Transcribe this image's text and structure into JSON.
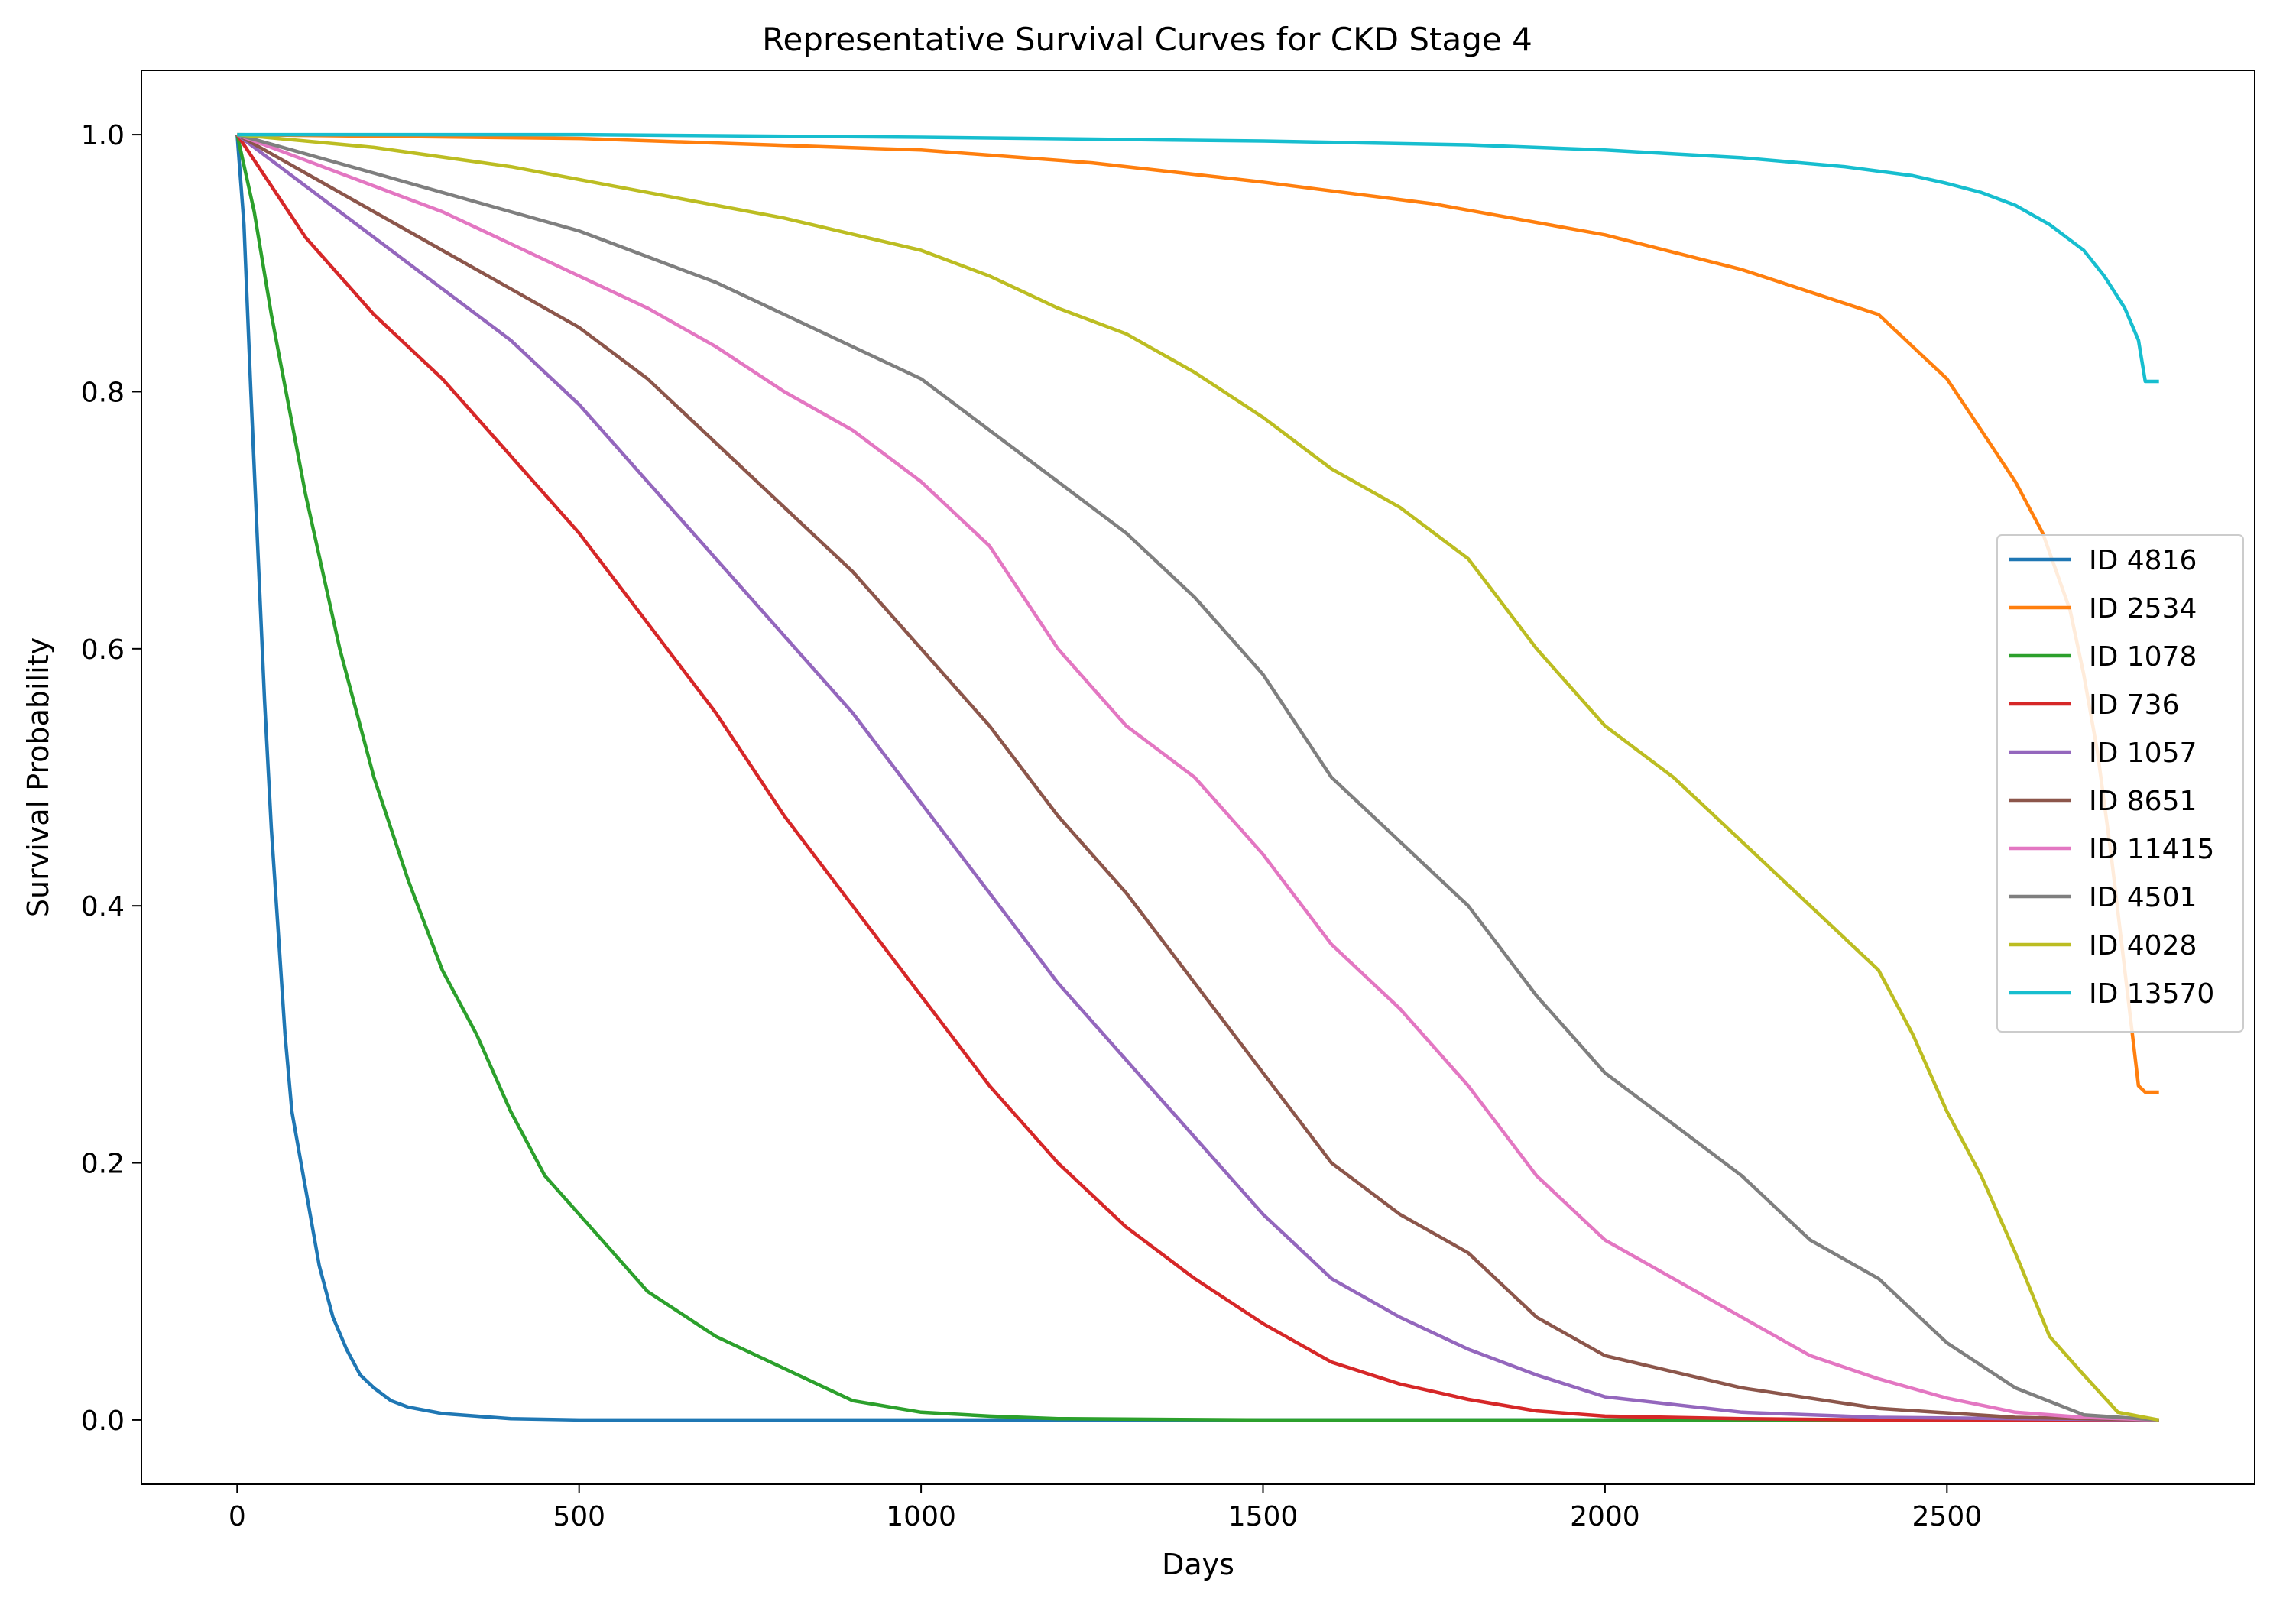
{
  "chart_data": {
    "type": "line",
    "title": "Representative Survival Curves for CKD Stage 4",
    "xlabel": "Days",
    "ylabel": "Survival Probability",
    "xlim": [
      -140,
      2950
    ],
    "ylim": [
      -0.05,
      1.05
    ],
    "xticks": [
      0,
      500,
      1000,
      1500,
      2000,
      2500
    ],
    "yticks": [
      0.0,
      0.2,
      0.4,
      0.6,
      0.8,
      1.0
    ],
    "xtick_labels": [
      "0",
      "500",
      "1000",
      "1500",
      "2000",
      "2500"
    ],
    "ytick_labels": [
      "0.0",
      "0.2",
      "0.4",
      "0.6",
      "0.8",
      "1.0"
    ],
    "grid": false,
    "legend_position": "center-right",
    "series": [
      {
        "name": "ID 4816",
        "color": "#1f77b4",
        "x": [
          0,
          10,
          20,
          30,
          40,
          50,
          60,
          70,
          80,
          100,
          120,
          140,
          160,
          180,
          200,
          225,
          250,
          300,
          350,
          400,
          500,
          1000,
          2000,
          2810
        ],
        "y": [
          1.0,
          0.93,
          0.8,
          0.68,
          0.56,
          0.46,
          0.38,
          0.3,
          0.24,
          0.18,
          0.12,
          0.08,
          0.055,
          0.035,
          0.025,
          0.015,
          0.01,
          0.005,
          0.003,
          0.001,
          0.0,
          0.0,
          0.0,
          0.0
        ]
      },
      {
        "name": "ID 2534",
        "color": "#ff7f0e",
        "x": [
          0,
          500,
          1000,
          1250,
          1500,
          1750,
          2000,
          2200,
          2400,
          2450,
          2500,
          2550,
          2600,
          2620,
          2640,
          2660,
          2680,
          2700,
          2720,
          2740,
          2760,
          2780,
          2790,
          2810
        ],
        "y": [
          1.0,
          0.997,
          0.988,
          0.978,
          0.963,
          0.946,
          0.922,
          0.895,
          0.86,
          0.835,
          0.81,
          0.77,
          0.73,
          0.71,
          0.69,
          0.66,
          0.63,
          0.58,
          0.52,
          0.44,
          0.35,
          0.26,
          0.255,
          0.255
        ]
      },
      {
        "name": "ID 1078",
        "color": "#2ca02c",
        "x": [
          0,
          25,
          50,
          75,
          100,
          150,
          200,
          250,
          300,
          350,
          400,
          450,
          500,
          600,
          700,
          800,
          900,
          1000,
          1100,
          1200,
          1500,
          2000,
          2810
        ],
        "y": [
          1.0,
          0.94,
          0.86,
          0.79,
          0.72,
          0.6,
          0.5,
          0.42,
          0.35,
          0.3,
          0.24,
          0.19,
          0.16,
          0.1,
          0.065,
          0.04,
          0.015,
          0.006,
          0.003,
          0.001,
          0.0,
          0.0,
          0.0
        ]
      },
      {
        "name": "ID 736",
        "color": "#d62728",
        "x": [
          0,
          100,
          200,
          300,
          400,
          500,
          600,
          700,
          800,
          900,
          1000,
          1100,
          1200,
          1300,
          1400,
          1500,
          1600,
          1700,
          1800,
          1900,
          2000,
          2200,
          2400,
          2810
        ],
        "y": [
          1.0,
          0.92,
          0.86,
          0.81,
          0.75,
          0.69,
          0.62,
          0.55,
          0.47,
          0.4,
          0.33,
          0.26,
          0.2,
          0.15,
          0.11,
          0.075,
          0.045,
          0.028,
          0.016,
          0.007,
          0.003,
          0.001,
          0.0,
          0.0
        ]
      },
      {
        "name": "ID 1057",
        "color": "#9467bd",
        "x": [
          0,
          100,
          200,
          300,
          400,
          500,
          600,
          700,
          800,
          900,
          1000,
          1100,
          1200,
          1300,
          1400,
          1500,
          1600,
          1700,
          1800,
          1900,
          2000,
          2200,
          2400,
          2810
        ],
        "y": [
          1.0,
          0.96,
          0.92,
          0.88,
          0.84,
          0.79,
          0.73,
          0.67,
          0.61,
          0.55,
          0.48,
          0.41,
          0.34,
          0.28,
          0.22,
          0.16,
          0.11,
          0.08,
          0.055,
          0.035,
          0.018,
          0.006,
          0.002,
          0.0
        ]
      },
      {
        "name": "ID 8651",
        "color": "#8c564b",
        "x": [
          0,
          100,
          200,
          300,
          400,
          500,
          600,
          700,
          800,
          900,
          1000,
          1100,
          1200,
          1300,
          1400,
          1500,
          1600,
          1700,
          1800,
          1900,
          2000,
          2200,
          2400,
          2600,
          2810
        ],
        "y": [
          1.0,
          0.97,
          0.94,
          0.91,
          0.88,
          0.85,
          0.81,
          0.76,
          0.71,
          0.66,
          0.6,
          0.54,
          0.47,
          0.41,
          0.34,
          0.27,
          0.2,
          0.16,
          0.13,
          0.08,
          0.05,
          0.025,
          0.009,
          0.002,
          0.0
        ]
      },
      {
        "name": "ID 11415",
        "color": "#e377c2",
        "x": [
          0,
          100,
          200,
          300,
          400,
          500,
          600,
          700,
          800,
          900,
          1000,
          1100,
          1200,
          1300,
          1400,
          1500,
          1600,
          1700,
          1800,
          1900,
          2000,
          2100,
          2200,
          2300,
          2400,
          2500,
          2600,
          2700,
          2810
        ],
        "y": [
          1.0,
          0.98,
          0.96,
          0.94,
          0.915,
          0.89,
          0.865,
          0.835,
          0.8,
          0.77,
          0.73,
          0.68,
          0.6,
          0.54,
          0.5,
          0.44,
          0.37,
          0.32,
          0.26,
          0.19,
          0.14,
          0.11,
          0.08,
          0.05,
          0.032,
          0.017,
          0.006,
          0.002,
          0.0
        ]
      },
      {
        "name": "ID 4501",
        "color": "#7f7f7f",
        "x": [
          0,
          100,
          200,
          300,
          400,
          500,
          600,
          700,
          800,
          900,
          1000,
          1100,
          1200,
          1300,
          1400,
          1500,
          1600,
          1700,
          1800,
          1900,
          2000,
          2100,
          2200,
          2300,
          2400,
          2500,
          2600,
          2700,
          2810
        ],
        "y": [
          1.0,
          0.985,
          0.97,
          0.955,
          0.94,
          0.925,
          0.905,
          0.885,
          0.86,
          0.835,
          0.81,
          0.77,
          0.73,
          0.69,
          0.64,
          0.58,
          0.5,
          0.45,
          0.4,
          0.33,
          0.27,
          0.23,
          0.19,
          0.14,
          0.11,
          0.06,
          0.025,
          0.004,
          0.0
        ]
      },
      {
        "name": "ID 4028",
        "color": "#bcbd22",
        "x": [
          0,
          200,
          400,
          600,
          800,
          1000,
          1100,
          1200,
          1300,
          1400,
          1500,
          1600,
          1700,
          1800,
          1900,
          2000,
          2100,
          2200,
          2300,
          2400,
          2450,
          2500,
          2550,
          2600,
          2650,
          2700,
          2750,
          2810
        ],
        "y": [
          1.0,
          0.99,
          0.975,
          0.955,
          0.935,
          0.91,
          0.89,
          0.865,
          0.845,
          0.815,
          0.78,
          0.74,
          0.71,
          0.67,
          0.6,
          0.54,
          0.5,
          0.45,
          0.4,
          0.35,
          0.3,
          0.24,
          0.19,
          0.13,
          0.065,
          0.035,
          0.006,
          0.0
        ]
      },
      {
        "name": "ID 13570",
        "color": "#17becf",
        "x": [
          0,
          500,
          1000,
          1500,
          1800,
          2000,
          2200,
          2350,
          2450,
          2500,
          2550,
          2600,
          2650,
          2700,
          2730,
          2760,
          2780,
          2790,
          2795,
          2810
        ],
        "y": [
          1.0,
          1.0,
          0.998,
          0.995,
          0.992,
          0.988,
          0.982,
          0.975,
          0.968,
          0.962,
          0.955,
          0.945,
          0.93,
          0.91,
          0.89,
          0.865,
          0.84,
          0.808,
          0.808,
          0.808
        ]
      }
    ]
  }
}
